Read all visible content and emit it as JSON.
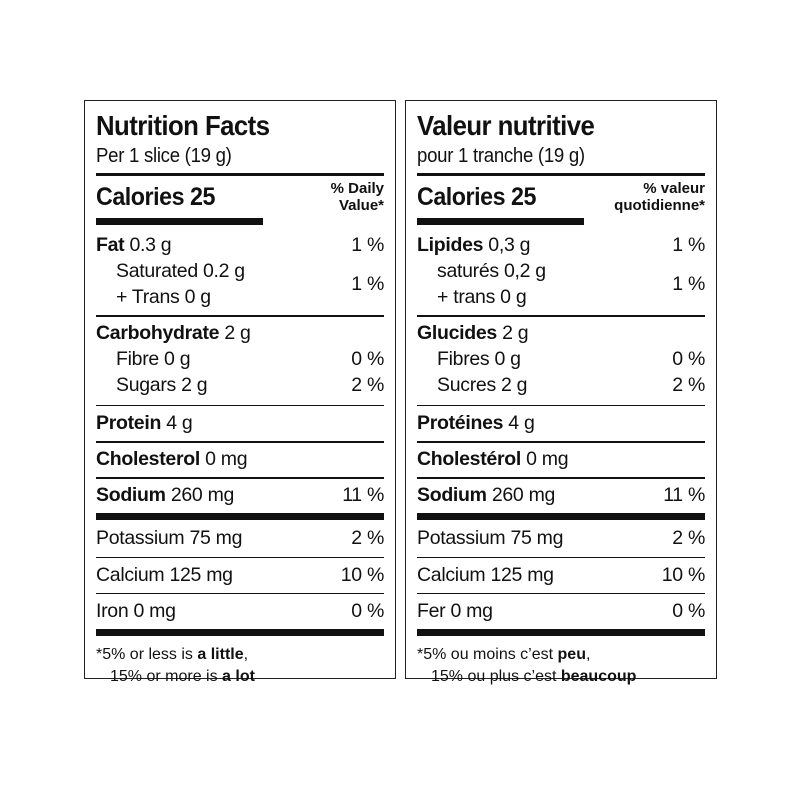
{
  "panels": [
    {
      "lang": "en",
      "title": "Nutrition Facts",
      "serving": "Per 1 slice (19 g)",
      "calories": "Calories 25",
      "dv_header": [
        "% Daily",
        "Value*"
      ],
      "fat": {
        "label": "Fat",
        "amount": "0.3 g",
        "dv": "1 %"
      },
      "sat_trans": {
        "line1": "Saturated 0.2 g",
        "line2": "+ Trans 0 g",
        "dv": "1 %"
      },
      "carbohydrate": {
        "label": "Carbohydrate",
        "amount": "2 g"
      },
      "fibre": {
        "label": "Fibre 0 g",
        "dv": "0 %"
      },
      "sugars": {
        "label": "Sugars 2 g",
        "dv": "2 %"
      },
      "protein": {
        "label": "Protein",
        "amount": "4 g"
      },
      "cholesterol": {
        "label": "Cholesterol",
        "amount": "0 mg"
      },
      "sodium": {
        "label": "Sodium",
        "amount": "260 mg",
        "dv": "11 %"
      },
      "potassium": {
        "label": "Potassium 75 mg",
        "dv": "2 %"
      },
      "calcium": {
        "label": "Calcium 125 mg",
        "dv": "10 %"
      },
      "iron": {
        "label": "Iron 0 mg",
        "dv": "0 %"
      },
      "footnote": {
        "l1a": "*5% or less is ",
        "l1b": "a little",
        "l1c": ",",
        "l2a": "15% or more is ",
        "l2b": "a lot"
      }
    },
    {
      "lang": "fr",
      "title": "Valeur nutritive",
      "serving": "pour 1 tranche (19 g)",
      "calories": "Calories 25",
      "dv_header": [
        "% valeur",
        "quotidienne*"
      ],
      "fat": {
        "label": "Lipides",
        "amount": "0,3 g",
        "dv": "1 %"
      },
      "sat_trans": {
        "line1": "saturés 0,2 g",
        "line2": "+ trans 0 g",
        "dv": "1 %"
      },
      "carbohydrate": {
        "label": "Glucides",
        "amount": "2 g"
      },
      "fibre": {
        "label": "Fibres 0 g",
        "dv": "0 %"
      },
      "sugars": {
        "label": "Sucres 2 g",
        "dv": "2 %"
      },
      "protein": {
        "label": "Protéines",
        "amount": "4 g"
      },
      "cholesterol": {
        "label": "Cholestérol",
        "amount": "0 mg"
      },
      "sodium": {
        "label": "Sodium",
        "amount": "260 mg",
        "dv": "11 %"
      },
      "potassium": {
        "label": "Potassium 75 mg",
        "dv": "2 %"
      },
      "calcium": {
        "label": "Calcium 125 mg",
        "dv": "10 %"
      },
      "iron": {
        "label": "Fer 0 mg",
        "dv": "0 %"
      },
      "footnote": {
        "l1a": "*5% ou moins c’est ",
        "l1b": "peu",
        "l1c": ",",
        "l2a": "15% ou plus c’est ",
        "l2b": "beaucoup"
      }
    }
  ]
}
